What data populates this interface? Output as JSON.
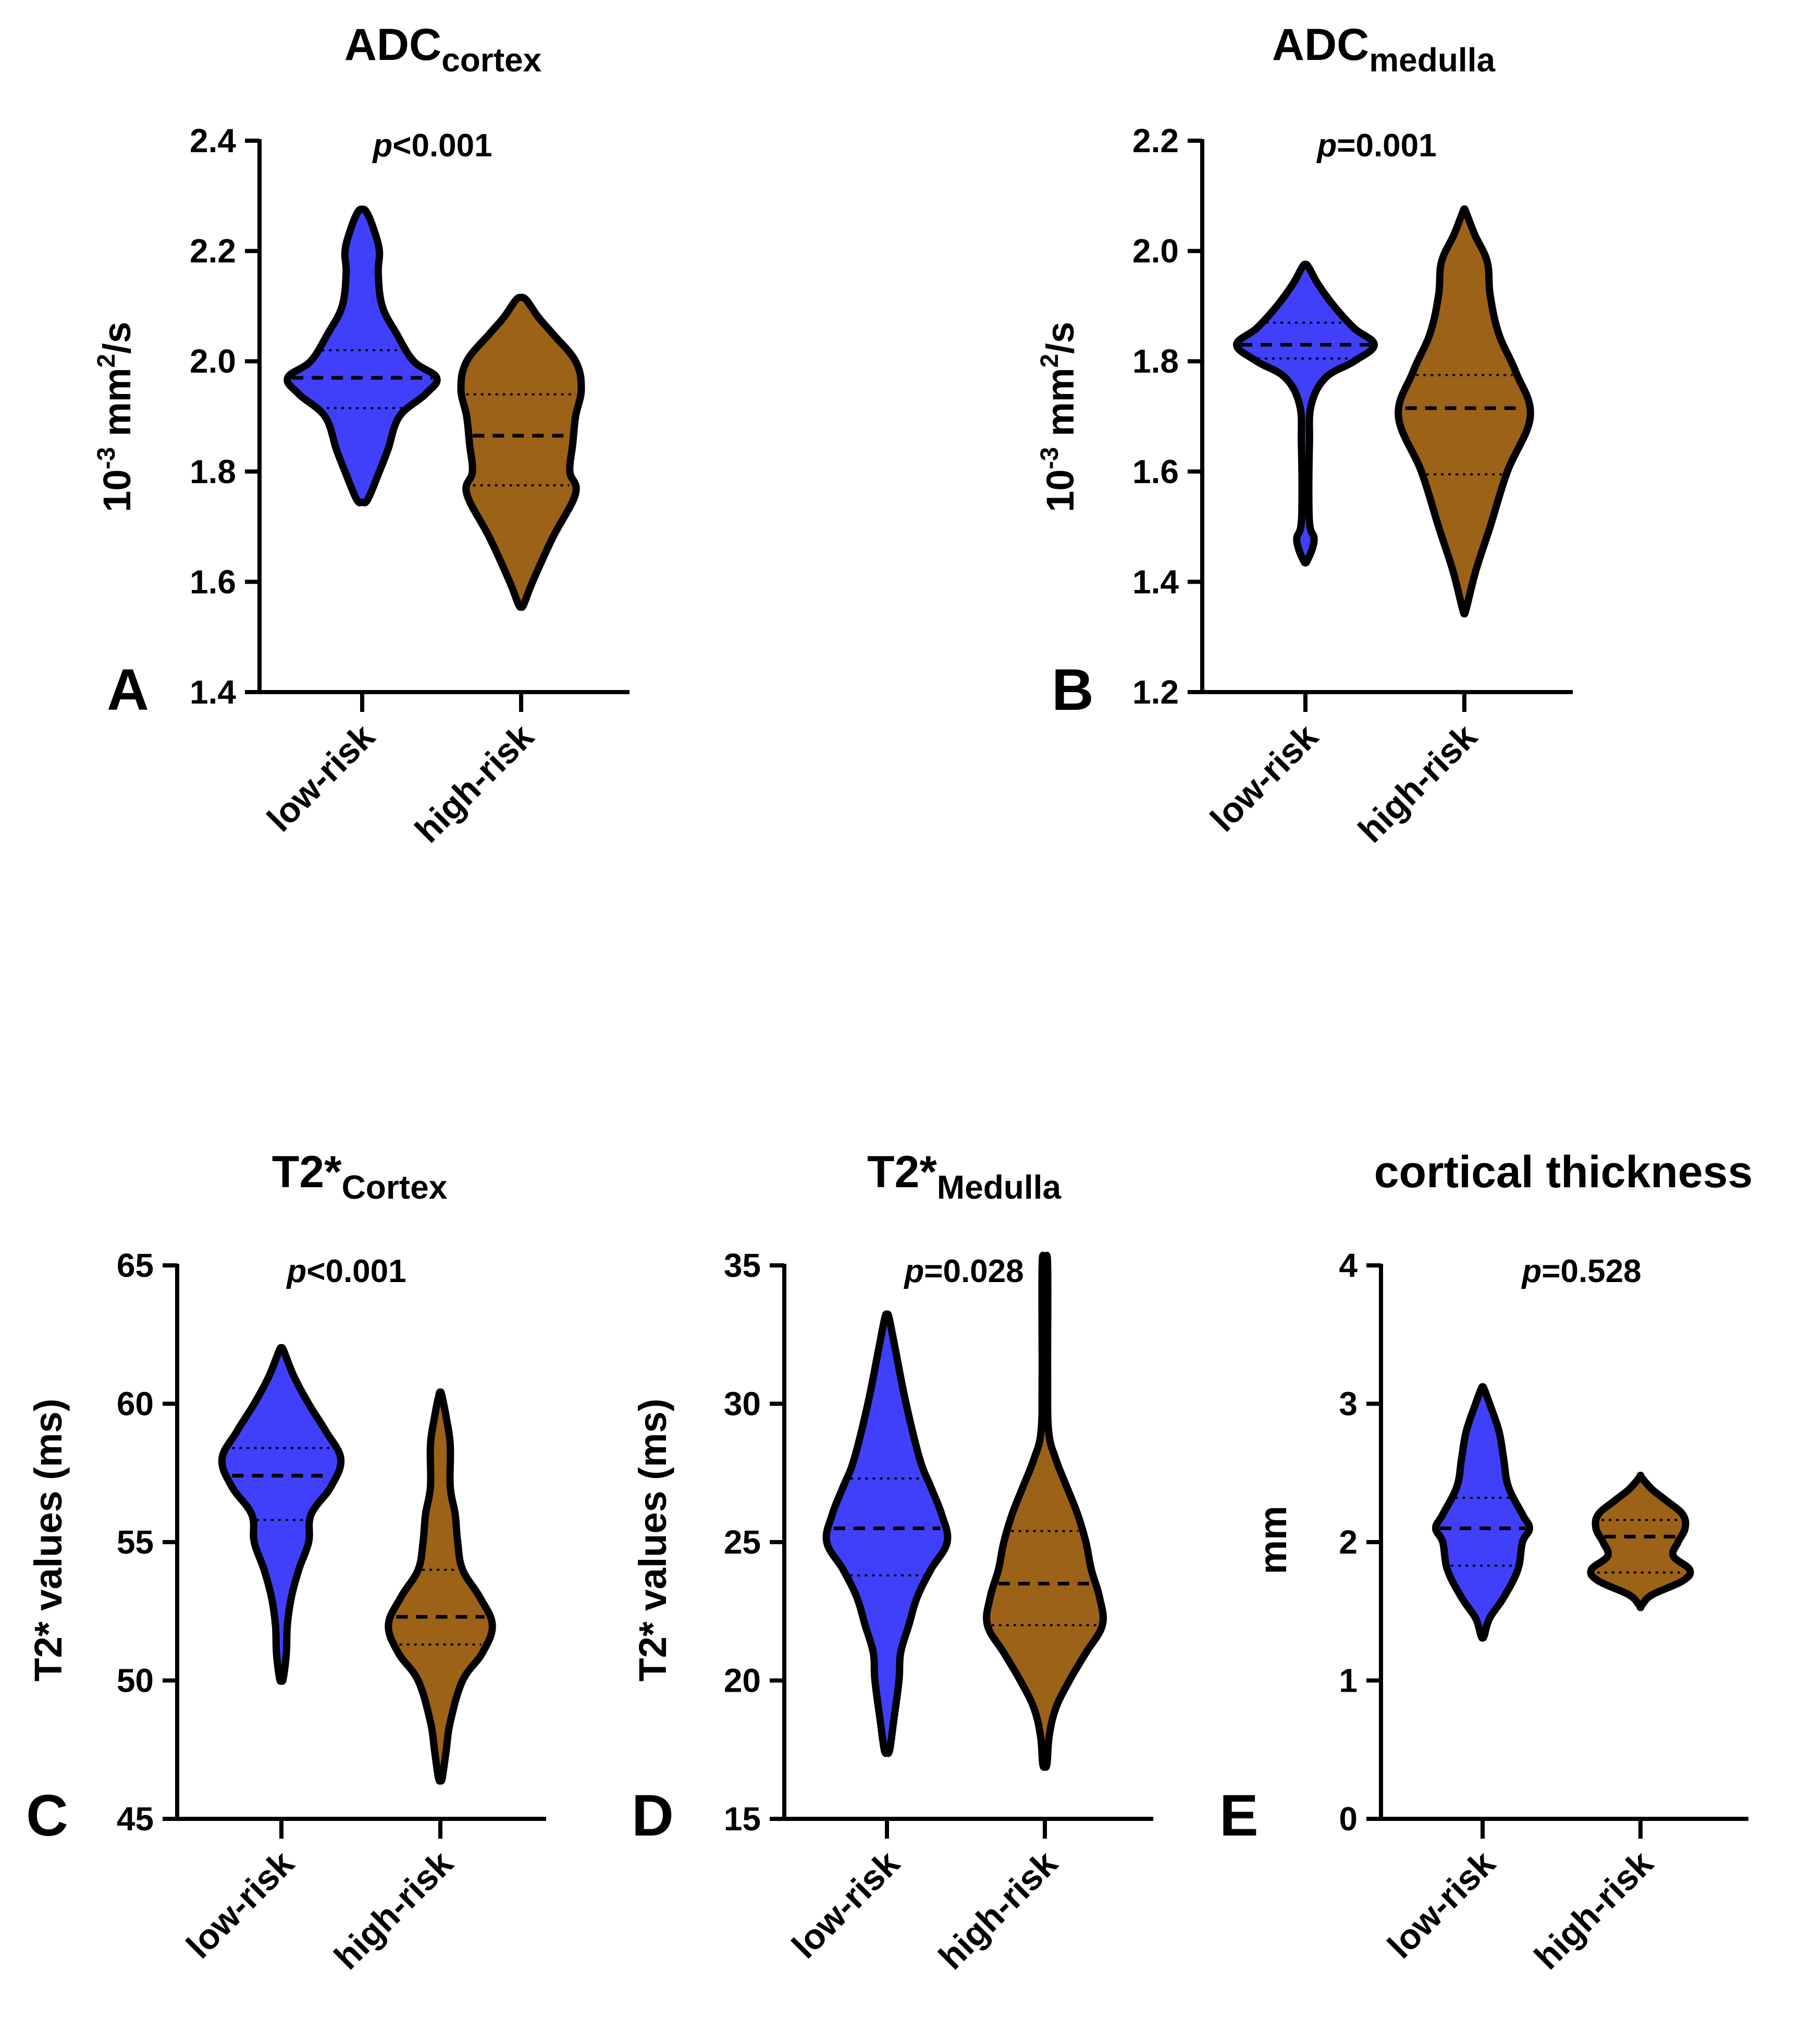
{
  "colors": {
    "low_risk": "#4040fb",
    "high_risk": "#9c6218",
    "outline": "#000000"
  },
  "chart_data": [
    {
      "id": "A",
      "type": "violin",
      "panel_label": "A",
      "title_main": "ADC",
      "title_sub": "cortex",
      "ylabel_base": "10",
      "ylabel_sup": "-3",
      "ylabel_mid": " mm",
      "ylabel_sup2": "2",
      "ylabel_end": "/s",
      "ylim": [
        1.4,
        2.4
      ],
      "ticks": [
        1.4,
        1.6,
        1.8,
        2.0,
        2.2,
        2.4
      ],
      "tick_labels": [
        "1.4",
        "1.6",
        "1.8",
        "2.0",
        "2.2",
        "2.4"
      ],
      "p_prefix": "p",
      "p_value": "<0.001",
      "categories": [
        "low-risk",
        "high-risk"
      ],
      "series": [
        {
          "name": "low-risk",
          "color": "#4040fb",
          "median": 1.97,
          "q1": 1.915,
          "q3": 2.02,
          "profile": [
            [
              1.75,
              0.1
            ],
            [
              1.8,
              0.3
            ],
            [
              1.84,
              0.45
            ],
            [
              1.9,
              0.65
            ],
            [
              1.94,
              1.1
            ],
            [
              1.97,
              1.3
            ],
            [
              2.0,
              0.9
            ],
            [
              2.05,
              0.6
            ],
            [
              2.1,
              0.35
            ],
            [
              2.16,
              0.28
            ],
            [
              2.2,
              0.3
            ],
            [
              2.24,
              0.2
            ],
            [
              2.27,
              0.08
            ]
          ]
        },
        {
          "name": "high-risk",
          "color": "#9c6218",
          "median": 1.865,
          "q1": 1.775,
          "q3": 1.94,
          "profile": [
            [
              1.56,
              0.05
            ],
            [
              1.6,
              0.2
            ],
            [
              1.68,
              0.55
            ],
            [
              1.76,
              0.95
            ],
            [
              1.8,
              0.85
            ],
            [
              1.85,
              0.9
            ],
            [
              1.9,
              0.95
            ],
            [
              1.95,
              1.05
            ],
            [
              2.0,
              0.95
            ],
            [
              2.05,
              0.55
            ],
            [
              2.08,
              0.3
            ],
            [
              2.11,
              0.1
            ]
          ]
        }
      ]
    },
    {
      "id": "B",
      "type": "violin",
      "panel_label": "B",
      "title_main": "ADC",
      "title_sub": "medulla",
      "ylabel_base": "10",
      "ylabel_sup": "-3",
      "ylabel_mid": " mm",
      "ylabel_sup2": "2",
      "ylabel_end": "/s",
      "ylim": [
        1.2,
        2.2
      ],
      "ticks": [
        1.2,
        1.4,
        1.6,
        1.8,
        2.0,
        2.2
      ],
      "tick_labels": [
        "1.2",
        "1.4",
        "1.6",
        "1.8",
        "2.0",
        "2.2"
      ],
      "p_prefix": "p",
      "p_value": "=0.001",
      "categories": [
        "low-risk",
        "high-risk"
      ],
      "series": [
        {
          "name": "low-risk",
          "color": "#4040fb",
          "median": 1.83,
          "q1": 1.805,
          "q3": 1.87,
          "profile": [
            [
              1.44,
              0.04
            ],
            [
              1.46,
              0.12
            ],
            [
              1.48,
              0.15
            ],
            [
              1.5,
              0.08
            ],
            [
              1.55,
              0.06
            ],
            [
              1.65,
              0.07
            ],
            [
              1.72,
              0.1
            ],
            [
              1.77,
              0.35
            ],
            [
              1.8,
              0.85
            ],
            [
              1.83,
              1.2
            ],
            [
              1.86,
              0.85
            ],
            [
              1.9,
              0.5
            ],
            [
              1.94,
              0.22
            ],
            [
              1.97,
              0.06
            ]
          ]
        },
        {
          "name": "high-risk",
          "color": "#9c6218",
          "median": 1.715,
          "q1": 1.595,
          "q3": 1.775,
          "profile": [
            [
              1.35,
              0.03
            ],
            [
              1.42,
              0.2
            ],
            [
              1.5,
              0.45
            ],
            [
              1.6,
              0.75
            ],
            [
              1.7,
              1.15
            ],
            [
              1.78,
              0.9
            ],
            [
              1.85,
              0.6
            ],
            [
              1.92,
              0.45
            ],
            [
              1.98,
              0.4
            ],
            [
              2.03,
              0.18
            ],
            [
              2.07,
              0.03
            ]
          ]
        }
      ]
    },
    {
      "id": "C",
      "type": "violin",
      "panel_label": "C",
      "title_main": "T2*",
      "title_sub": "Cortex",
      "ylabel": "T2* values (ms)",
      "ylim": [
        45,
        65
      ],
      "ticks": [
        45,
        50,
        55,
        60,
        65
      ],
      "tick_labels": [
        "45",
        "50",
        "55",
        "60",
        "65"
      ],
      "p_prefix": "p",
      "p_value": "<0.001",
      "categories": [
        "low-risk",
        "high-risk"
      ],
      "series": [
        {
          "name": "low-risk",
          "color": "#4040fb",
          "median": 57.4,
          "q1": 55.8,
          "q3": 58.4,
          "profile": [
            [
              50.1,
              0.04
            ],
            [
              51,
              0.1
            ],
            [
              52,
              0.12
            ],
            [
              53,
              0.2
            ],
            [
              54,
              0.35
            ],
            [
              55,
              0.55
            ],
            [
              56,
              0.6
            ],
            [
              57,
              1.0
            ],
            [
              58,
              1.2
            ],
            [
              59,
              0.9
            ],
            [
              60,
              0.55
            ],
            [
              61,
              0.25
            ],
            [
              61.9,
              0.05
            ]
          ]
        },
        {
          "name": "high-risk",
          "color": "#9c6218",
          "median": 52.3,
          "q1": 51.3,
          "q3": 54.0,
          "profile": [
            [
              46.5,
              0.04
            ],
            [
              47.5,
              0.12
            ],
            [
              48.5,
              0.2
            ],
            [
              50,
              0.45
            ],
            [
              51,
              0.85
            ],
            [
              52,
              1.05
            ],
            [
              53,
              0.8
            ],
            [
              54,
              0.45
            ],
            [
              55,
              0.35
            ],
            [
              56,
              0.3
            ],
            [
              57,
              0.2
            ],
            [
              58.5,
              0.2
            ],
            [
              59.5,
              0.12
            ],
            [
              60.3,
              0.03
            ]
          ]
        }
      ]
    },
    {
      "id": "D",
      "type": "violin",
      "panel_label": "D",
      "title_main": "T2*",
      "title_sub": "Medulla",
      "ylabel": "T2* values (ms)",
      "ylim": [
        15,
        35
      ],
      "ticks": [
        15,
        20,
        25,
        30,
        35
      ],
      "tick_labels": [
        "15",
        "20",
        "25",
        "30",
        "35"
      ],
      "p_prefix": "p",
      "p_value": "=0.028",
      "categories": [
        "low-risk",
        "high-risk"
      ],
      "series": [
        {
          "name": "low-risk",
          "color": "#4040fb",
          "median": 25.5,
          "q1": 23.8,
          "q3": 27.3,
          "profile": [
            [
              17.5,
              0.05
            ],
            [
              18.5,
              0.12
            ],
            [
              20,
              0.22
            ],
            [
              21,
              0.25
            ],
            [
              22,
              0.4
            ],
            [
              23,
              0.55
            ],
            [
              24,
              0.8
            ],
            [
              25,
              1.1
            ],
            [
              26,
              1.0
            ],
            [
              27,
              0.8
            ],
            [
              28,
              0.6
            ],
            [
              30,
              0.35
            ],
            [
              32,
              0.15
            ],
            [
              33.1,
              0.04
            ]
          ]
        },
        {
          "name": "high-risk",
          "color": "#9c6218",
          "median": 23.5,
          "q1": 22.0,
          "q3": 25.4,
          "profile": [
            [
              17,
              0.04
            ],
            [
              18,
              0.08
            ],
            [
              19,
              0.2
            ],
            [
              20,
              0.45
            ],
            [
              21,
              0.75
            ],
            [
              22,
              1.05
            ],
            [
              23,
              1.0
            ],
            [
              24,
              0.85
            ],
            [
              25,
              0.75
            ],
            [
              26,
              0.6
            ],
            [
              27,
              0.4
            ],
            [
              28,
              0.2
            ],
            [
              29,
              0.07
            ],
            [
              31,
              0.05
            ],
            [
              35,
              0.05
            ]
          ]
        }
      ]
    },
    {
      "id": "E",
      "type": "violin",
      "panel_label": "E",
      "title_main": "cortical thickness",
      "title_sub": "",
      "ylabel": "mm",
      "ylim": [
        0,
        4
      ],
      "ticks": [
        0,
        1,
        2,
        3,
        4
      ],
      "tick_labels": [
        "0",
        "1",
        "2",
        "3",
        "4"
      ],
      "p_prefix": "p",
      "p_value": "=0.528",
      "categories": [
        "low-risk",
        "high-risk"
      ],
      "series": [
        {
          "name": "low-risk",
          "color": "#4040fb",
          "median": 2.1,
          "q1": 1.83,
          "q3": 2.32,
          "profile": [
            [
              1.33,
              0.04
            ],
            [
              1.45,
              0.15
            ],
            [
              1.6,
              0.45
            ],
            [
              1.8,
              0.75
            ],
            [
              2.0,
              0.85
            ],
            [
              2.1,
              1.0
            ],
            [
              2.2,
              0.85
            ],
            [
              2.4,
              0.55
            ],
            [
              2.6,
              0.45
            ],
            [
              2.8,
              0.35
            ],
            [
              3.0,
              0.15
            ],
            [
              3.1,
              0.04
            ]
          ]
        },
        {
          "name": "high-risk",
          "color": "#9c6218",
          "median": 2.04,
          "q1": 1.78,
          "q3": 2.16,
          "profile": [
            [
              1.55,
              0.04
            ],
            [
              1.62,
              0.25
            ],
            [
              1.72,
              0.9
            ],
            [
              1.8,
              1.05
            ],
            [
              1.9,
              0.7
            ],
            [
              2.0,
              0.8
            ],
            [
              2.1,
              0.95
            ],
            [
              2.2,
              0.9
            ],
            [
              2.3,
              0.55
            ],
            [
              2.38,
              0.25
            ],
            [
              2.46,
              0.04
            ]
          ]
        }
      ]
    }
  ]
}
